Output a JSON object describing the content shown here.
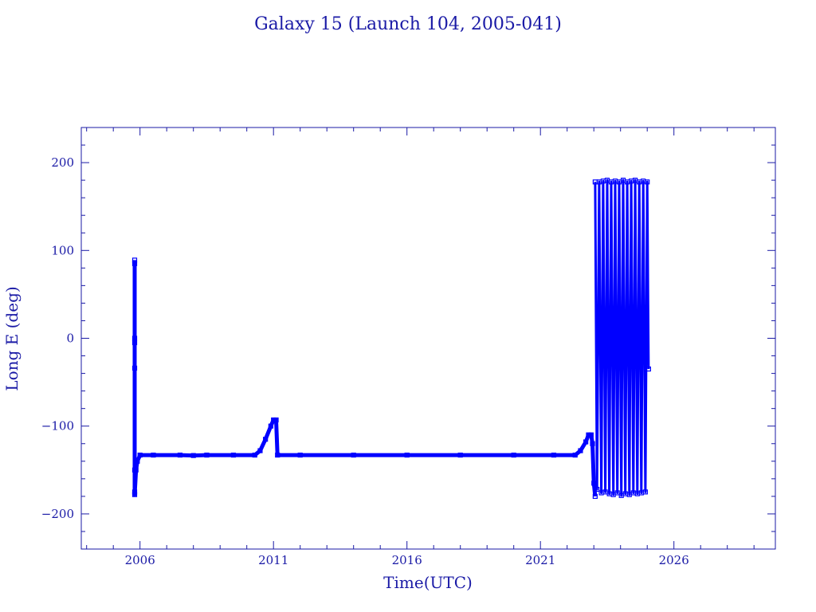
{
  "chart_data": {
    "type": "line",
    "title": "Galaxy 15 (Launch 104, 2005-041)",
    "xlabel": "Time(UTC)",
    "ylabel": "Long E (deg)",
    "xlim": [
      2003.8,
      2029.8
    ],
    "ylim": [
      -240,
      240
    ],
    "x_ticks": [
      2006,
      2011,
      2016,
      2021,
      2026
    ],
    "x_tick_labels": [
      "2006",
      "2011",
      "2016",
      "2021",
      "2026"
    ],
    "y_ticks": [
      200,
      100,
      0,
      -100,
      -200
    ],
    "y_tick_labels": [
      "200",
      "100",
      "0",
      "−100",
      "−200"
    ],
    "grid": false,
    "legend": "none",
    "series": [
      {
        "color": "#0000ff",
        "points": [
          [
            2005.8,
            89
          ],
          [
            2005.8,
            85
          ],
          [
            2005.8,
            0
          ],
          [
            2005.8,
            -5
          ],
          [
            2005.8,
            -34
          ],
          [
            2005.8,
            -150
          ],
          [
            2005.8,
            -175
          ],
          [
            2005.8,
            -178
          ],
          [
            2005.85,
            -150
          ],
          [
            2005.9,
            -140
          ],
          [
            2006.0,
            -133
          ],
          [
            2006.5,
            -133
          ],
          [
            2007.5,
            -133
          ],
          [
            2008.0,
            -133.5
          ],
          [
            2008.5,
            -133
          ],
          [
            2009.5,
            -133
          ],
          [
            2010.3,
            -133
          ],
          [
            2010.5,
            -128
          ],
          [
            2010.7,
            -115
          ],
          [
            2010.9,
            -100
          ],
          [
            2011.0,
            -93
          ],
          [
            2011.1,
            -93
          ],
          [
            2011.15,
            -133
          ],
          [
            2012.0,
            -133
          ],
          [
            2014.0,
            -133
          ],
          [
            2016.0,
            -133
          ],
          [
            2018.0,
            -133
          ],
          [
            2020.0,
            -133
          ],
          [
            2021.5,
            -133
          ],
          [
            2022.3,
            -133
          ],
          [
            2022.5,
            -128
          ],
          [
            2022.7,
            -118
          ],
          [
            2022.8,
            -110
          ],
          [
            2022.9,
            -110
          ],
          [
            2022.95,
            -120
          ],
          [
            2023.0,
            -165
          ],
          [
            2023.05,
            -180
          ]
        ]
      },
      {
        "color": "#0000ff",
        "points": [
          [
            2023.05,
            178
          ],
          [
            2023.12,
            -172
          ],
          [
            2023.2,
            178
          ],
          [
            2023.28,
            -176
          ],
          [
            2023.35,
            179
          ],
          [
            2023.43,
            -175
          ],
          [
            2023.5,
            180
          ],
          [
            2023.58,
            -177
          ],
          [
            2023.65,
            178
          ],
          [
            2023.73,
            -178
          ],
          [
            2023.8,
            179
          ],
          [
            2023.88,
            -176
          ],
          [
            2023.95,
            178
          ],
          [
            2024.03,
            -179
          ],
          [
            2024.1,
            180
          ],
          [
            2024.18,
            -177
          ],
          [
            2024.25,
            178
          ],
          [
            2024.33,
            -178
          ],
          [
            2024.4,
            179
          ],
          [
            2024.48,
            -176
          ],
          [
            2024.55,
            180
          ],
          [
            2024.63,
            -177
          ],
          [
            2024.7,
            178
          ],
          [
            2024.78,
            -176
          ],
          [
            2024.85,
            179
          ],
          [
            2024.93,
            -175
          ],
          [
            2025.0,
            178
          ],
          [
            2025.05,
            -35
          ]
        ]
      }
    ]
  }
}
